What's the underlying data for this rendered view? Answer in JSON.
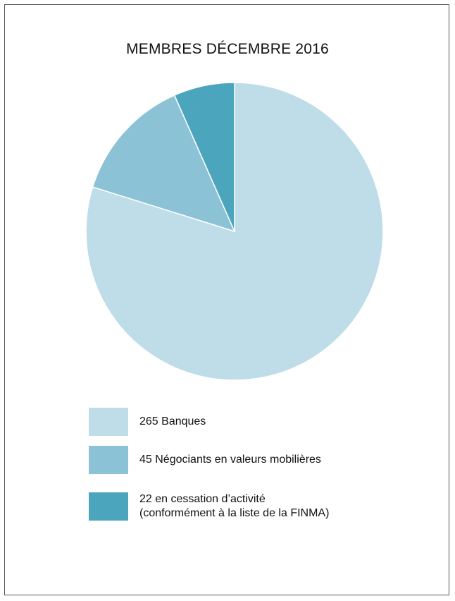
{
  "chart_data": {
    "type": "pie",
    "title": "MEMBRES DÉCEMBRE 2016",
    "slices": [
      {
        "value": 265,
        "label_lines": [
          "265 Banques"
        ],
        "color": "#bedde9"
      },
      {
        "value": 45,
        "label_lines": [
          "45 Négociants en valeurs mobilières"
        ],
        "color": "#8cc2d6"
      },
      {
        "value": 22,
        "label_lines": [
          "22 en cessation d’activité",
          "(conformément à la liste de la FINMA)"
        ],
        "color": "#4aa5bd"
      }
    ],
    "legend_position": "bottom-left",
    "slice_border_color": "#ffffff"
  }
}
